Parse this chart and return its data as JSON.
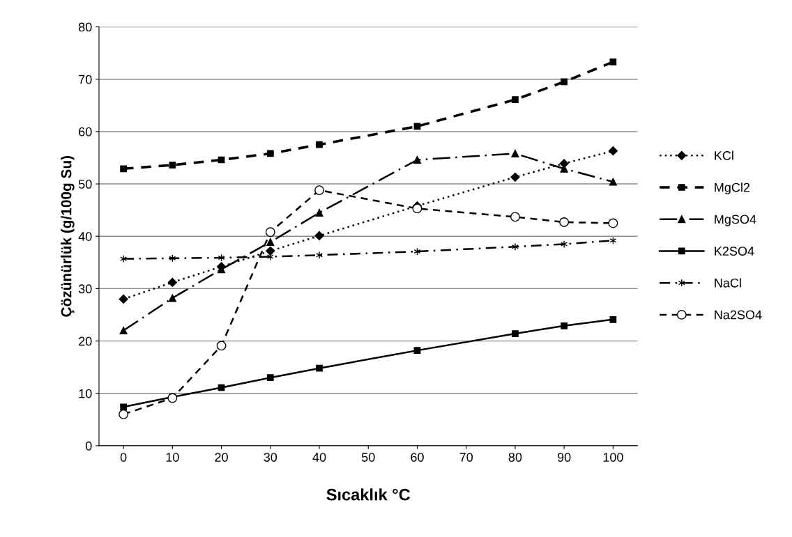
{
  "chart_data": {
    "type": "line",
    "xlabel": "Sıcaklık °C",
    "ylabel": "Çözünürlük (g/100g Su)",
    "x": [
      0,
      10,
      20,
      30,
      40,
      60,
      80,
      90,
      100
    ],
    "xlim": [
      -5,
      105
    ],
    "xticks": [
      0,
      10,
      20,
      30,
      40,
      50,
      60,
      70,
      80,
      90,
      100
    ],
    "ylim": [
      0,
      80
    ],
    "yticks": [
      0,
      10,
      20,
      30,
      40,
      50,
      60,
      70,
      80
    ],
    "grid": "y",
    "legend": "right",
    "series": [
      {
        "name": "KCl",
        "color": "#000000",
        "line_style": "dotted",
        "marker": "diamond",
        "values": [
          28.0,
          31.2,
          34.2,
          37.2,
          40.1,
          45.8,
          51.3,
          53.9,
          56.3
        ]
      },
      {
        "name": "MgCl2",
        "color": "#000000",
        "line_style": "dashed",
        "marker": "square",
        "values": [
          52.9,
          53.6,
          54.6,
          55.8,
          57.5,
          61.0,
          66.1,
          69.5,
          73.3
        ]
      },
      {
        "name": "MgSO4",
        "color": "#000000",
        "line_style": "longdashdot",
        "marker": "triangle",
        "values": [
          22.0,
          28.2,
          33.7,
          38.9,
          44.5,
          54.6,
          55.8,
          52.9,
          50.4
        ]
      },
      {
        "name": "K2SO4",
        "color": "#000000",
        "line_style": "solid",
        "marker": "square",
        "values": [
          7.4,
          9.3,
          11.1,
          13.0,
          14.8,
          18.2,
          21.4,
          22.9,
          24.1
        ]
      },
      {
        "name": "NaCl",
        "color": "#000000",
        "line_style": "dashdot",
        "marker": "cross",
        "values": [
          35.7,
          35.8,
          35.9,
          36.1,
          36.4,
          37.1,
          38.0,
          38.5,
          39.2
        ]
      },
      {
        "name": "Na2SO4",
        "color": "#000000",
        "line_style": "dashed",
        "marker": "circle",
        "values": [
          6.0,
          9.1,
          19.1,
          40.8,
          48.8,
          45.3,
          43.7,
          42.7,
          42.5
        ]
      }
    ]
  }
}
